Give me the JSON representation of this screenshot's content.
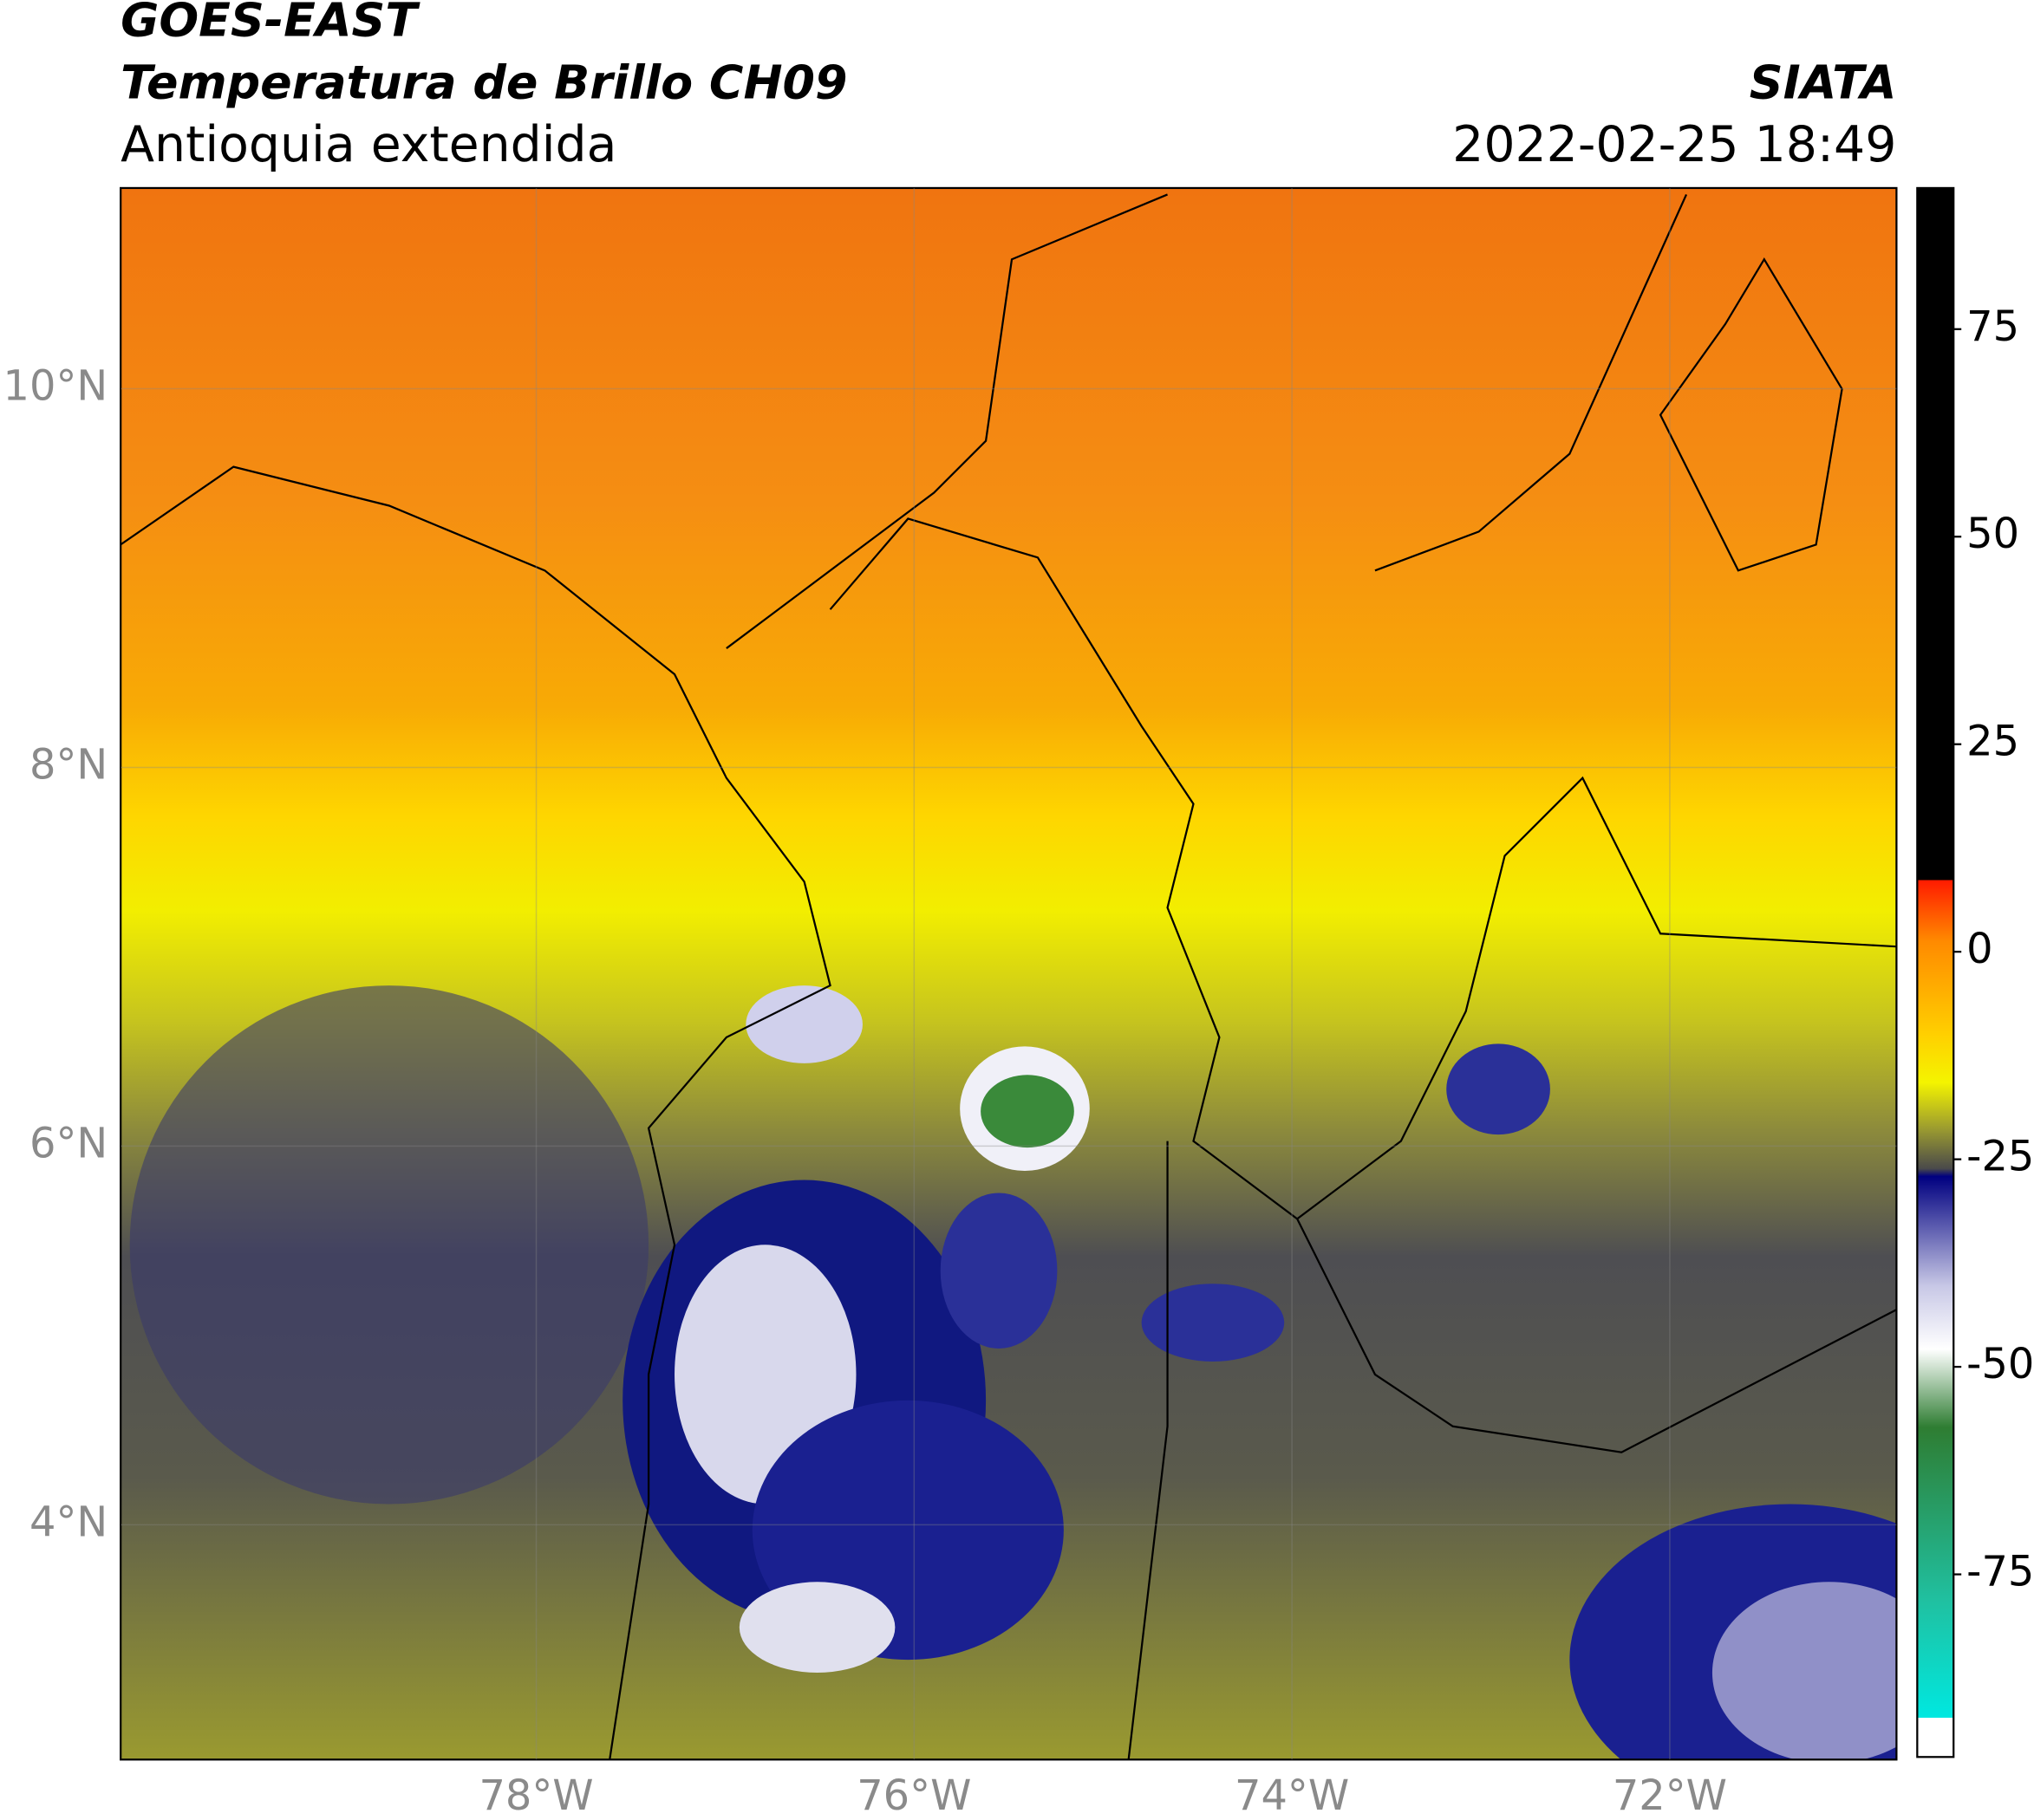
{
  "header": {
    "satellite": "GOES-EAST",
    "product": "Temperatura de Brillo CH09",
    "region": "Antioquia extendida",
    "agency": "SIATA",
    "timestamp": "2022-02-25 18:49"
  },
  "map": {
    "lon_lim": [
      -80.2,
      -70.8
    ],
    "lat_lim": [
      2.76,
      11.06
    ],
    "grid": true,
    "lon_ticks": [
      {
        "value": -78,
        "label": "78°W"
      },
      {
        "value": -76,
        "label": "76°W"
      },
      {
        "value": -74,
        "label": "74°W"
      },
      {
        "value": -72,
        "label": "72°W"
      }
    ],
    "lat_ticks": [
      {
        "value": 4,
        "label": "4°N"
      },
      {
        "value": 6,
        "label": "6°N"
      },
      {
        "value": 8,
        "label": "8°N"
      },
      {
        "value": 10,
        "label": "10°N"
      }
    ]
  },
  "colorbar": {
    "lim": [
      -97,
      92
    ],
    "ticks": [
      -75,
      -50,
      -25,
      0,
      25,
      50,
      75
    ]
  }
}
